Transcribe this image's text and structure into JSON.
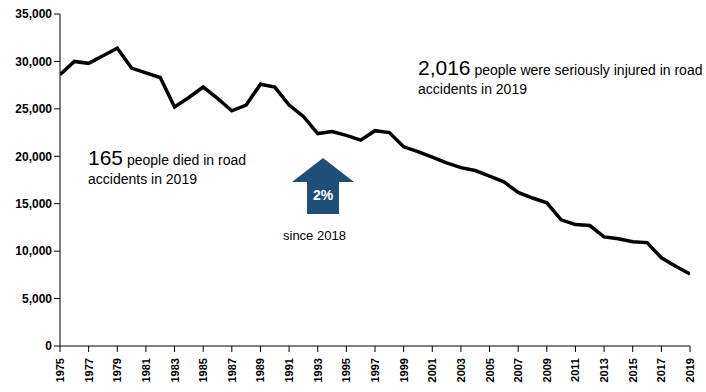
{
  "chart_data": {
    "type": "line",
    "x": [
      1975,
      1976,
      1977,
      1978,
      1979,
      1980,
      1981,
      1982,
      1983,
      1984,
      1985,
      1986,
      1987,
      1988,
      1989,
      1990,
      1991,
      1992,
      1993,
      1994,
      1995,
      1996,
      1997,
      1998,
      1999,
      2000,
      2001,
      2002,
      2003,
      2004,
      2005,
      2006,
      2007,
      2008,
      2009,
      2010,
      2011,
      2012,
      2013,
      2014,
      2015,
      2016,
      2017,
      2018,
      2019
    ],
    "values": [
      28600,
      30000,
      29800,
      30600,
      31400,
      29300,
      28800,
      28300,
      25200,
      26200,
      27300,
      26100,
      24800,
      25400,
      27600,
      27300,
      25400,
      24200,
      22400,
      22600,
      22200,
      21700,
      22700,
      22500,
      21000,
      20500,
      19900,
      19300,
      18800,
      18500,
      17900,
      17300,
      16200,
      15600,
      15100,
      13300,
      12800,
      12700,
      11500,
      11300,
      11000,
      10900,
      9300,
      8400,
      7600
    ],
    "color": "#000000",
    "xlim": [
      1975,
      2019
    ],
    "xticks": [
      1975,
      1977,
      1979,
      1981,
      1983,
      1985,
      1987,
      1989,
      1991,
      1993,
      1995,
      1997,
      1999,
      2001,
      2003,
      2005,
      2007,
      2009,
      2011,
      2013,
      2015,
      2017,
      2019
    ],
    "ylim": [
      0,
      35000
    ],
    "yticks": [
      {
        "value": 0,
        "label": "0"
      },
      {
        "value": 5000,
        "label": "5,000"
      },
      {
        "value": 10000,
        "label": "10,000"
      },
      {
        "value": 15000,
        "label": "15,000"
      },
      {
        "value": 20000,
        "label": "20,000"
      },
      {
        "value": 25000,
        "label": "25,000"
      },
      {
        "value": 30000,
        "label": "30,000"
      },
      {
        "value": 35000,
        "label": "35,000"
      }
    ],
    "grid": false,
    "annotations": [
      {
        "highlight": "165",
        "text": "people died in road accidents in 2019"
      },
      {
        "highlight": "2,016",
        "text": "people were seriously injured in road accidents in 2019"
      },
      {
        "highlight": "2%",
        "text": "since 2018",
        "color": "#1f4e79"
      }
    ]
  }
}
